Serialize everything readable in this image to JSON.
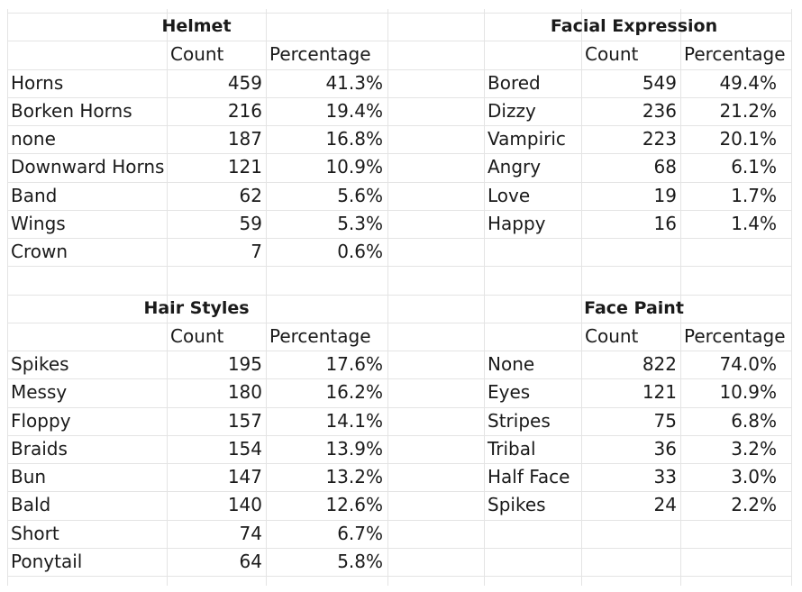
{
  "tables": {
    "helmet": {
      "title": "Helmet",
      "headers": [
        "Count",
        "Percentage"
      ],
      "rows": [
        [
          "Horns",
          "459",
          "41.3%"
        ],
        [
          "Borken Horns",
          "216",
          "19.4%"
        ],
        [
          "none",
          "187",
          "16.8%"
        ],
        [
          "Downward Horns",
          "121",
          "10.9%"
        ],
        [
          "Band",
          "62",
          "5.6%"
        ],
        [
          "Wings",
          "59",
          "5.3%"
        ],
        [
          "Crown",
          "7",
          "0.6%"
        ]
      ]
    },
    "facial_expression": {
      "title": "Facial Expression",
      "headers": [
        "Count",
        "Percentage"
      ],
      "rows": [
        [
          "Bored",
          "549",
          "49.4%"
        ],
        [
          "Dizzy",
          "236",
          "21.2%"
        ],
        [
          "Vampiric",
          "223",
          "20.1%"
        ],
        [
          "Angry",
          "68",
          "6.1%"
        ],
        [
          "Love",
          "19",
          "1.7%"
        ],
        [
          "Happy",
          "16",
          "1.4%"
        ]
      ]
    },
    "hair_styles": {
      "title": "Hair Styles",
      "headers": [
        "Count",
        "Percentage"
      ],
      "rows": [
        [
          "Spikes",
          "195",
          "17.6%"
        ],
        [
          "Messy",
          "180",
          "16.2%"
        ],
        [
          "Floppy",
          "157",
          "14.1%"
        ],
        [
          "Braids",
          "154",
          "13.9%"
        ],
        [
          "Bun",
          "147",
          "13.2%"
        ],
        [
          "Bald",
          "140",
          "12.6%"
        ],
        [
          "Short",
          "74",
          "6.7%"
        ],
        [
          "Ponytail",
          "64",
          "5.8%"
        ]
      ]
    },
    "face_paint": {
      "title": "Face Paint",
      "headers": [
        "Count",
        "Percentage"
      ],
      "rows": [
        [
          "None",
          "822",
          "74.0%"
        ],
        [
          "Eyes",
          "121",
          "10.9%"
        ],
        [
          "Stripes",
          "75",
          "6.8%"
        ],
        [
          "Tribal",
          "36",
          "3.2%"
        ],
        [
          "Half Face",
          "33",
          "3.0%"
        ],
        [
          "Spikes",
          "24",
          "2.2%"
        ]
      ]
    }
  }
}
